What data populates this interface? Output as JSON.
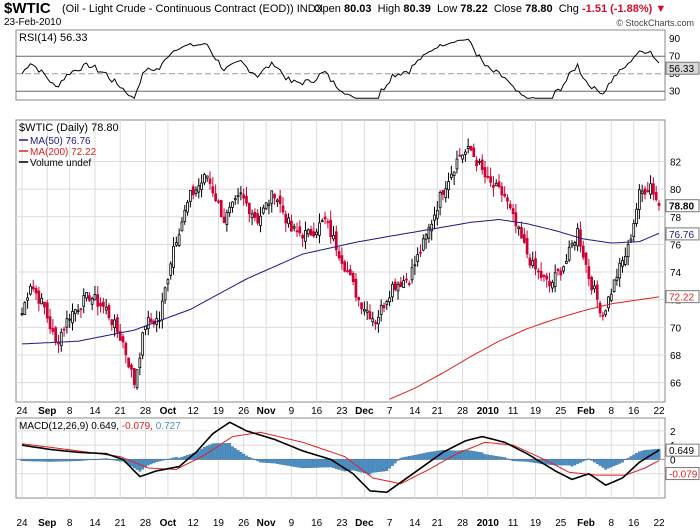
{
  "header": {
    "symbol": "$WTIC",
    "description": "(Oil - Light Crude - Continuous Contract (EOD)) INDX",
    "date": "23-Feb-2010",
    "open_label": "Open",
    "open": "80.03",
    "high_label": "High",
    "high": "80.39",
    "low_label": "Low",
    "low": "78.22",
    "close_label": "Close",
    "close": "78.80",
    "chg_label": "Chg",
    "chg": "-1.51 (-1.88%)",
    "brand": "© StockCharts.com"
  },
  "colors": {
    "up": "#000000",
    "down": "#cc0033",
    "ma50": "#1a1a80",
    "ma200": "#e02020",
    "macd_line": "#000000",
    "signal_line": "#e02020",
    "histogram": "#4a90c8",
    "down_light": "#f0a0b0"
  },
  "chart_data": [
    {
      "type": "line",
      "title": "RSI(14) 56.33",
      "series": [
        {
          "name": "RSI(14)",
          "last": "56.33"
        }
      ],
      "ylim": [
        20,
        100
      ],
      "y_ticks": [
        30,
        50,
        70,
        90
      ],
      "ref_lines": [
        30,
        50,
        70
      ],
      "last_label": "56.33"
    },
    {
      "type": "candlestick",
      "title": "$WTIC (Daily) 78.80",
      "ylim": [
        64.6,
        85.0
      ],
      "y_ticks": [
        66,
        68,
        70,
        72,
        74,
        76,
        78,
        80,
        82
      ],
      "legend": [
        {
          "name": "MA(50) 76.76",
          "color": "#1a1a80"
        },
        {
          "name": "MA(200) 72.22",
          "color": "#e02020"
        },
        {
          "name": "Volume undef",
          "color": "#000000"
        }
      ],
      "series_labels": {
        "close": "78.80",
        "ma50": "76.76",
        "ma200": "72.22"
      },
      "x_labels": [
        "24",
        "Sep",
        "8",
        "14",
        "21",
        "28",
        "Oct",
        "12",
        "19",
        "26",
        "Nov",
        "9",
        "16",
        "23",
        "Dec",
        "7",
        "14",
        "21",
        "28",
        "2010",
        "11",
        "19",
        "25",
        "Feb",
        "8",
        "16",
        "22"
      ],
      "close_anchors": [
        [
          0,
          71.0
        ],
        [
          3,
          73.2
        ],
        [
          8,
          71.4
        ],
        [
          12,
          68.8
        ],
        [
          17,
          70.9
        ],
        [
          24,
          72.3
        ],
        [
          30,
          71.3
        ],
        [
          36,
          68.9
        ],
        [
          40,
          66.0
        ],
        [
          44,
          70.3
        ],
        [
          49,
          70.6
        ],
        [
          54,
          75.9
        ],
        [
          60,
          79.5
        ],
        [
          66,
          81.0
        ],
        [
          72,
          77.8
        ],
        [
          78,
          79.5
        ],
        [
          84,
          77.8
        ],
        [
          90,
          79.8
        ],
        [
          96,
          77.0
        ],
        [
          102,
          76.7
        ],
        [
          108,
          77.7
        ],
        [
          114,
          75.0
        ],
        [
          120,
          72.0
        ],
        [
          126,
          70.5
        ],
        [
          132,
          73.0
        ],
        [
          138,
          73.6
        ],
        [
          144,
          76.5
        ],
        [
          150,
          80.0
        ],
        [
          156,
          82.5
        ],
        [
          160,
          82.8
        ],
        [
          166,
          80.5
        ],
        [
          172,
          79.5
        ],
        [
          176,
          77.3
        ],
        [
          182,
          74.4
        ],
        [
          188,
          73.0
        ],
        [
          194,
          74.8
        ],
        [
          198,
          77.0
        ],
        [
          202,
          73.7
        ],
        [
          207,
          70.9
        ],
        [
          212,
          73.8
        ],
        [
          216,
          75.7
        ],
        [
          220,
          79.6
        ],
        [
          224,
          80.4
        ],
        [
          227,
          78.8
        ]
      ],
      "ma50_anchors": [
        [
          0,
          68.8
        ],
        [
          20,
          69.0
        ],
        [
          40,
          69.8
        ],
        [
          60,
          71.3
        ],
        [
          80,
          73.5
        ],
        [
          100,
          75.3
        ],
        [
          120,
          76.2
        ],
        [
          140,
          76.9
        ],
        [
          160,
          77.6
        ],
        [
          170,
          77.8
        ],
        [
          180,
          77.5
        ],
        [
          190,
          77.0
        ],
        [
          200,
          76.4
        ],
        [
          210,
          76.1
        ],
        [
          220,
          76.2
        ],
        [
          227,
          76.8
        ]
      ],
      "ma200_anchors": [
        [
          131,
          64.8
        ],
        [
          140,
          65.6
        ],
        [
          150,
          66.7
        ],
        [
          160,
          67.9
        ],
        [
          170,
          69.0
        ],
        [
          180,
          69.9
        ],
        [
          190,
          70.6
        ],
        [
          200,
          71.2
        ],
        [
          210,
          71.7
        ],
        [
          220,
          72.0
        ],
        [
          227,
          72.2
        ]
      ]
    },
    {
      "type": "line",
      "title": "MACD(12,26,9) 0.649, -0.079, 0.727",
      "series": [
        {
          "name": "MACD(12,26,9)",
          "last": "0.649"
        },
        {
          "name": "signal",
          "last": "-0.079"
        },
        {
          "name": "histogram",
          "last": "0.727"
        }
      ],
      "legend_sep": ",",
      "ylim": [
        -2.7,
        2.9
      ],
      "y_ticks": [
        -1,
        0,
        1,
        2
      ],
      "macd_anchors": [
        [
          0,
          1.0
        ],
        [
          10,
          0.7
        ],
        [
          20,
          0.5
        ],
        [
          30,
          0.4
        ],
        [
          36,
          0.0
        ],
        [
          42,
          -1.2
        ],
        [
          48,
          -0.8
        ],
        [
          56,
          -0.5
        ],
        [
          62,
          0.5
        ],
        [
          68,
          1.8
        ],
        [
          74,
          2.6
        ],
        [
          80,
          2.0
        ],
        [
          90,
          1.4
        ],
        [
          100,
          0.6
        ],
        [
          110,
          0.0
        ],
        [
          118,
          -1.0
        ],
        [
          124,
          -2.2
        ],
        [
          130,
          -2.3
        ],
        [
          140,
          -0.9
        ],
        [
          150,
          0.5
        ],
        [
          158,
          1.3
        ],
        [
          164,
          1.6
        ],
        [
          172,
          1.2
        ],
        [
          180,
          0.4
        ],
        [
          190,
          -0.8
        ],
        [
          196,
          -1.4
        ],
        [
          202,
          -1.0
        ],
        [
          208,
          -1.8
        ],
        [
          214,
          -1.3
        ],
        [
          220,
          -0.2
        ],
        [
          227,
          0.65
        ]
      ],
      "signal_anchors": [
        [
          0,
          1.1
        ],
        [
          20,
          0.6
        ],
        [
          35,
          0.2
        ],
        [
          45,
          -0.6
        ],
        [
          55,
          -0.7
        ],
        [
          65,
          0.3
        ],
        [
          75,
          1.6
        ],
        [
          85,
          1.9
        ],
        [
          100,
          1.2
        ],
        [
          115,
          0.2
        ],
        [
          125,
          -1.3
        ],
        [
          135,
          -1.7
        ],
        [
          145,
          -0.7
        ],
        [
          155,
          0.4
        ],
        [
          165,
          1.2
        ],
        [
          175,
          1.0
        ],
        [
          185,
          0.1
        ],
        [
          195,
          -0.9
        ],
        [
          205,
          -1.1
        ],
        [
          215,
          -1.1
        ],
        [
          222,
          -0.6
        ],
        [
          227,
          -0.08
        ]
      ],
      "last_labels": [
        "0.649",
        "-0.079"
      ]
    }
  ]
}
